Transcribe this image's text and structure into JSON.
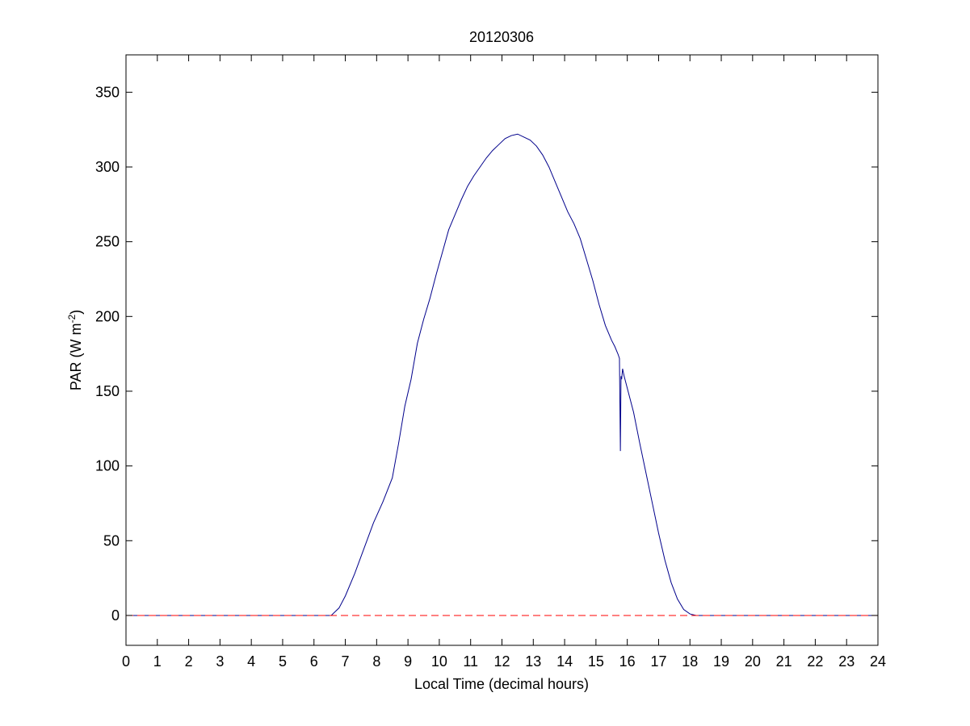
{
  "chart_data": {
    "type": "line",
    "title": "20120306",
    "xlabel": "Local Time (decimal hours)",
    "ylabel_main": "PAR (W m",
    "ylabel_sup": "-2",
    "ylabel_close": ")",
    "xlim": [
      0,
      24
    ],
    "ylim": [
      -20,
      375
    ],
    "xticks": [
      0,
      1,
      2,
      3,
      4,
      5,
      6,
      7,
      8,
      9,
      10,
      11,
      12,
      13,
      14,
      15,
      16,
      17,
      18,
      19,
      20,
      21,
      22,
      23,
      24
    ],
    "yticks": [
      0,
      50,
      100,
      150,
      200,
      250,
      300,
      350
    ],
    "grid": false,
    "series": [
      {
        "color": "#00008b",
        "style": "solid",
        "x": [
          0,
          6.55,
          6.8,
          7.0,
          7.3,
          7.6,
          7.9,
          8.2,
          8.5,
          8.7,
          8.9,
          9.1,
          9.3,
          9.5,
          9.7,
          9.9,
          10.1,
          10.3,
          10.5,
          10.7,
          10.9,
          11.1,
          11.3,
          11.5,
          11.7,
          11.9,
          12.1,
          12.3,
          12.5,
          12.7,
          12.9,
          13.1,
          13.3,
          13.5,
          13.7,
          13.9,
          14.1,
          14.3,
          14.5,
          14.7,
          14.9,
          15.1,
          15.3,
          15.5,
          15.6,
          15.7,
          15.75,
          15.78,
          15.8,
          15.82,
          15.85,
          15.9,
          16.0,
          16.2,
          16.4,
          16.6,
          16.8,
          17.0,
          17.2,
          17.4,
          17.6,
          17.8,
          18.0,
          18.2,
          18.35,
          24
        ],
        "y": [
          0,
          0,
          5,
          13,
          28,
          45,
          62,
          76,
          92,
          115,
          140,
          158,
          182,
          198,
          212,
          228,
          243,
          258,
          268,
          278,
          287,
          294,
          300,
          306,
          311,
          315,
          319,
          321,
          322,
          320,
          318,
          314,
          308,
          300,
          290,
          280,
          270,
          262,
          252,
          238,
          224,
          208,
          194,
          184,
          180,
          175,
          172,
          110,
          160,
          158,
          165,
          160,
          152,
          136,
          115,
          95,
          75,
          55,
          37,
          22,
          11,
          4,
          1,
          0,
          0,
          0
        ]
      },
      {
        "color": "#ff0000",
        "style": "dashed",
        "x": [
          0,
          24
        ],
        "y": [
          0,
          0
        ]
      }
    ]
  }
}
